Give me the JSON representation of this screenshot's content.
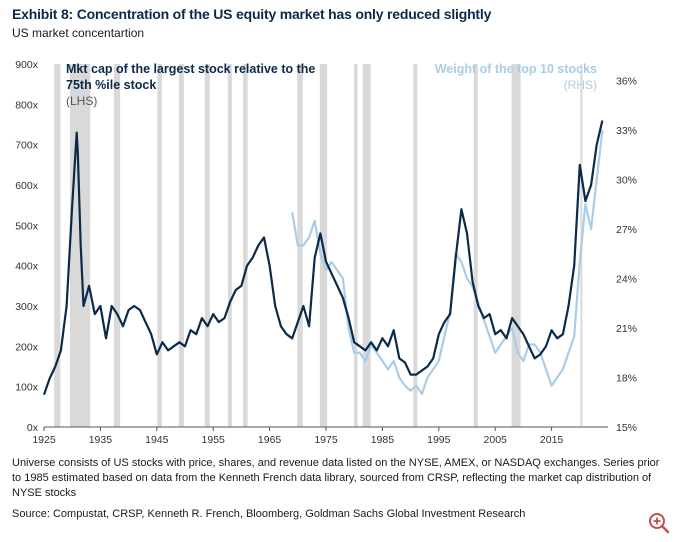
{
  "title": "Exhibit 8: Concentration of the US equity market has only reduced slightly",
  "subtitle": "US market concentartion",
  "footnote": "Universe consists of US stocks with price, shares, and revenue data listed on the NYSE, AMEX, or NASDAQ exchanges. Series prior to 1985 estimated based on data from the Kenneth French data library, sourced from CRSP, reflecting the market cap distribution of NYSE stocks",
  "source": "Source: Compustat, CRSP, Kenneth R. French, Bloomberg, Goldman Sachs Global Investment Research",
  "colors": {
    "lhs": "#0b2a4a",
    "rhs": "#a9cde8",
    "recession": "#d9d9d9",
    "accent": "#c0504d"
  },
  "icons": {
    "zoom": "zoom-in-icon"
  },
  "chart_data": {
    "type": "line",
    "x_range": [
      1925,
      2025
    ],
    "x_ticks": [
      "1925",
      "1935",
      "1945",
      "1955",
      "1965",
      "1975",
      "1985",
      "1995",
      "2005",
      "2015"
    ],
    "ylim_left": [
      0,
      900
    ],
    "y_ticks_left": [
      "0x",
      "100x",
      "200x",
      "300x",
      "400x",
      "500x",
      "600x",
      "700x",
      "800x",
      "900x"
    ],
    "ylim_right": [
      15,
      37
    ],
    "y_ticks_right": [
      "15%",
      "18%",
      "21%",
      "24%",
      "27%",
      "30%",
      "33%",
      "36%"
    ],
    "recessions": [
      [
        1926.8,
        1927.9
      ],
      [
        1929.6,
        1933.2
      ],
      [
        1937.4,
        1938.5
      ],
      [
        1945.1,
        1945.9
      ],
      [
        1948.9,
        1949.8
      ],
      [
        1953.5,
        1954.4
      ],
      [
        1957.6,
        1958.3
      ],
      [
        1960.3,
        1961.1
      ],
      [
        1969.9,
        1970.9
      ],
      [
        1973.9,
        1975.2
      ],
      [
        1980.0,
        1980.6
      ],
      [
        1981.5,
        1982.9
      ],
      [
        1990.5,
        1991.2
      ],
      [
        2001.2,
        2001.9
      ],
      [
        2007.9,
        2009.5
      ],
      [
        2020.1,
        2020.4
      ]
    ],
    "series": [
      {
        "name": "Mkt cap of the largest stock relative to the 75th %ile stock",
        "label_line1": "Mkt cap of the largest stock relative to the",
        "label_line2": "75th %ile stock",
        "axis_label": "(LHS)",
        "axis": "left",
        "x": [
          1925,
          1926,
          1927,
          1928,
          1929,
          1930,
          1930.8,
          1931,
          1931.5,
          1932,
          1933,
          1934,
          1935,
          1936,
          1937,
          1938,
          1939,
          1940,
          1941,
          1942,
          1943,
          1944,
          1945,
          1946,
          1947,
          1948,
          1949,
          1950,
          1951,
          1952,
          1953,
          1954,
          1955,
          1956,
          1957,
          1958,
          1959,
          1960,
          1961,
          1962,
          1963,
          1964,
          1965,
          1966,
          1967,
          1968,
          1969,
          1970,
          1971,
          1972,
          1973,
          1974,
          1975,
          1976,
          1977,
          1978,
          1979,
          1980,
          1981,
          1982,
          1983,
          1984,
          1985,
          1986,
          1987,
          1988,
          1989,
          1990,
          1991,
          1992,
          1993,
          1994,
          1995,
          1996,
          1997,
          1998,
          1999,
          2000,
          2001,
          2002,
          2003,
          2004,
          2005,
          2006,
          2007,
          2008,
          2009,
          2010,
          2011,
          2012,
          2013,
          2014,
          2015,
          2016,
          2017,
          2018,
          2019,
          2020,
          2021,
          2022,
          2023,
          2024
        ],
        "values": [
          80,
          120,
          150,
          190,
          300,
          550,
          730,
          680,
          450,
          300,
          350,
          280,
          300,
          220,
          300,
          280,
          250,
          290,
          300,
          290,
          260,
          230,
          180,
          210,
          190,
          200,
          210,
          200,
          240,
          230,
          270,
          250,
          280,
          260,
          270,
          310,
          340,
          350,
          400,
          420,
          450,
          470,
          400,
          300,
          250,
          230,
          220,
          260,
          300,
          250,
          420,
          480,
          410,
          380,
          350,
          320,
          270,
          210,
          200,
          190,
          210,
          190,
          220,
          200,
          240,
          170,
          160,
          130,
          130,
          140,
          150,
          170,
          230,
          260,
          280,
          420,
          540,
          480,
          360,
          300,
          270,
          280,
          230,
          240,
          220,
          270,
          250,
          230,
          200,
          170,
          180,
          200,
          240,
          220,
          230,
          300,
          400,
          650,
          560,
          600,
          700,
          760
        ]
      },
      {
        "name": "Weight of the top 10 stocks",
        "label_line1": "Weight of the top 10 stocks",
        "axis_label": "(RHS)",
        "axis": "right",
        "x": [
          1969,
          1970,
          1971,
          1972,
          1973,
          1974,
          1975,
          1976,
          1977,
          1978,
          1979,
          1980,
          1981,
          1982,
          1983,
          1984,
          1985,
          1986,
          1987,
          1988,
          1989,
          1990,
          1991,
          1992,
          1993,
          1994,
          1995,
          1996,
          1997,
          1998,
          1999,
          2000,
          2001,
          2002,
          2003,
          2004,
          2005,
          2006,
          2007,
          2008,
          2009,
          2010,
          2011,
          2012,
          2013,
          2014,
          2015,
          2016,
          2017,
          2018,
          2019,
          2020,
          2021,
          2022,
          2023,
          2024
        ],
        "values": [
          28.0,
          26.0,
          26.0,
          26.5,
          27.5,
          25.5,
          24.5,
          25.0,
          24.5,
          24.0,
          21.0,
          19.5,
          19.5,
          19.0,
          20.0,
          19.5,
          19.0,
          18.5,
          19.0,
          18.0,
          17.5,
          17.2,
          17.5,
          17.0,
          18.0,
          18.5,
          19.0,
          20.5,
          22.0,
          25.5,
          25.0,
          24.0,
          23.5,
          22.5,
          21.5,
          20.5,
          19.5,
          20.0,
          20.5,
          21.0,
          19.5,
          19.0,
          20.0,
          20.0,
          19.5,
          18.5,
          17.5,
          18.0,
          18.5,
          19.5,
          20.5,
          25.0,
          28.5,
          27.0,
          30.0,
          33.0
        ]
      }
    ]
  }
}
